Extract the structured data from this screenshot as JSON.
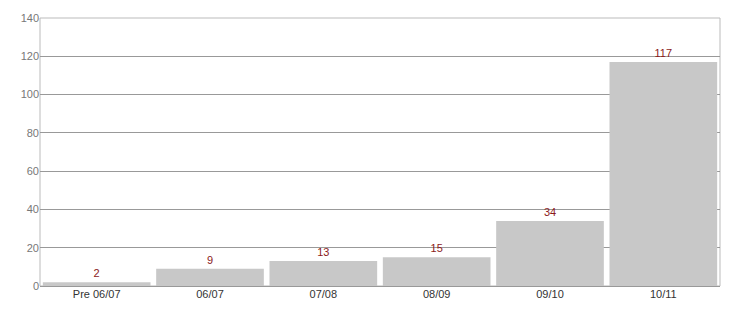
{
  "chart_data": {
    "type": "bar",
    "categories": [
      "Pre 06/07",
      "06/07",
      "07/08",
      "08/09",
      "09/10",
      "10/11"
    ],
    "values": [
      2,
      9,
      13,
      15,
      34,
      117
    ],
    "color": "#c8c8c8",
    "ylim": [
      0,
      140
    ],
    "yticks": [
      0,
      20,
      40,
      60,
      80,
      100,
      120,
      140
    ],
    "grid": true,
    "data_labels": true
  }
}
